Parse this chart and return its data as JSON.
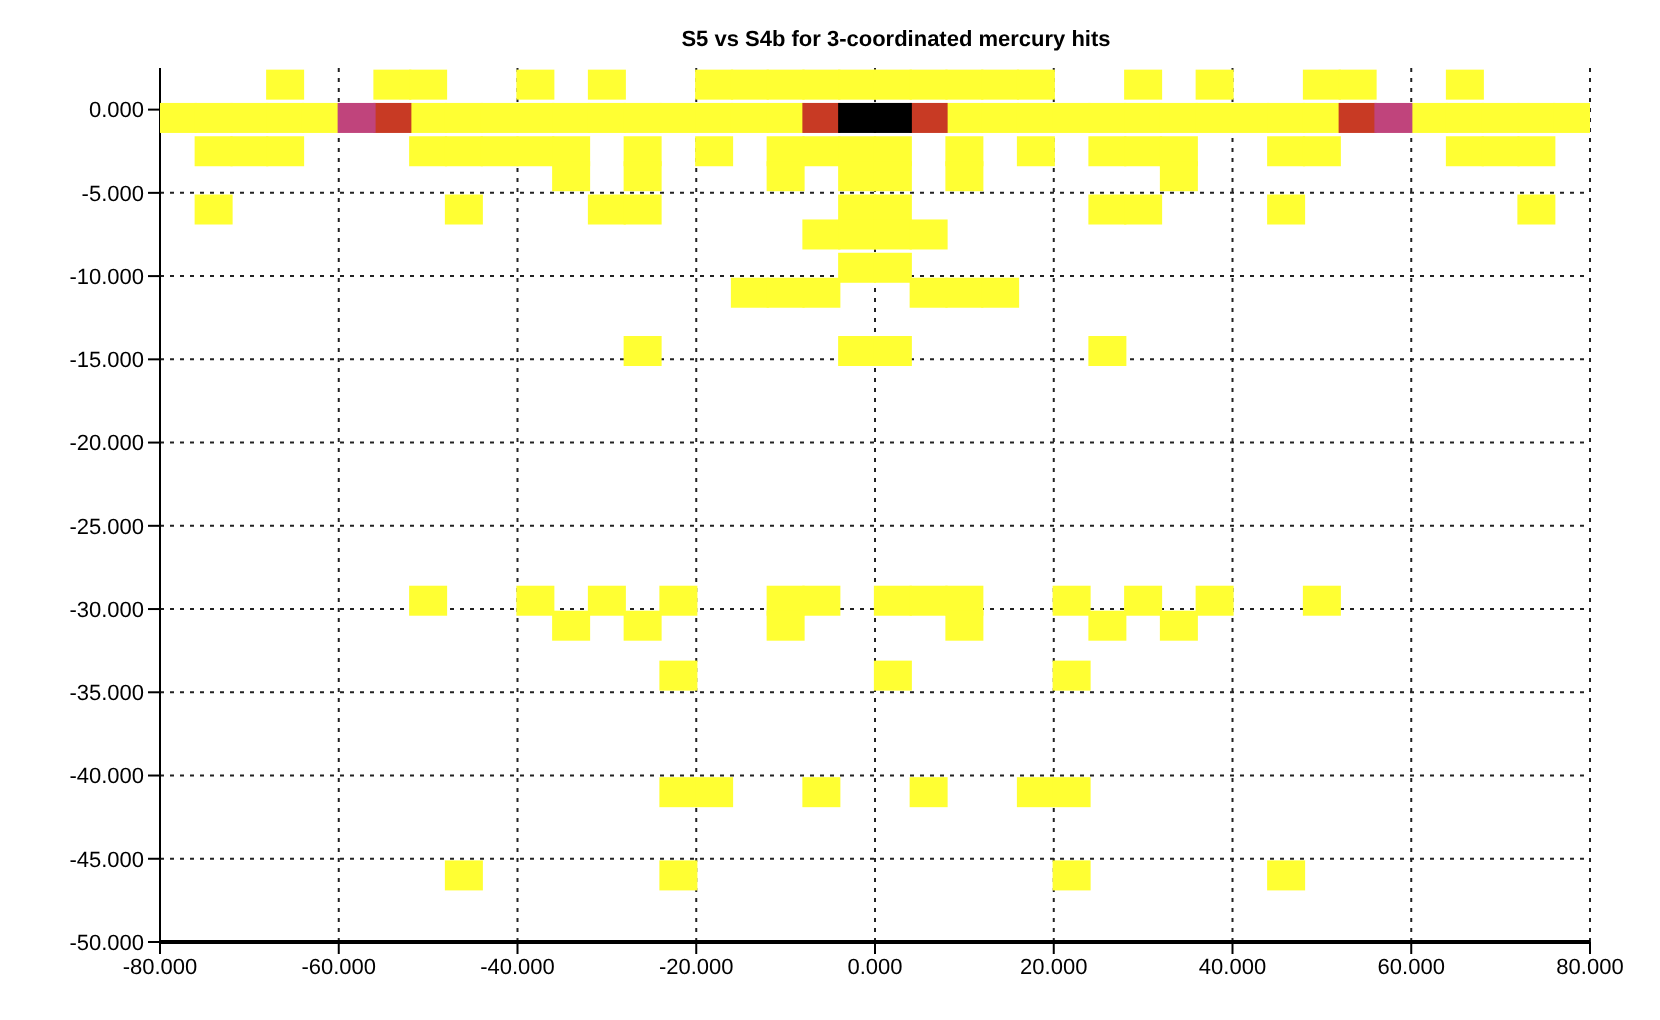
{
  "chart_data": {
    "type": "scatter",
    "title": "S5 vs S4b for 3-coordinated mercury hits",
    "marker": "square",
    "grid": true,
    "xlim": [
      -80,
      80
    ],
    "ylim": [
      -50,
      2.5
    ],
    "xticks": [
      {
        "value": -80,
        "label": "-80.000"
      },
      {
        "value": -60,
        "label": "-60.000"
      },
      {
        "value": -40,
        "label": "-40.000"
      },
      {
        "value": -20,
        "label": "-20.000"
      },
      {
        "value": 0,
        "label": "0.000"
      },
      {
        "value": 20,
        "label": "20.000"
      },
      {
        "value": 40,
        "label": "40.000"
      },
      {
        "value": 60,
        "label": "60.000"
      },
      {
        "value": 80,
        "label": "80.000"
      }
    ],
    "yticks": [
      {
        "value": 0,
        "label": "0.000"
      },
      {
        "value": -5,
        "label": "-5.000"
      },
      {
        "value": -10,
        "label": "-10.000"
      },
      {
        "value": -15,
        "label": "-15.000"
      },
      {
        "value": -20,
        "label": "-20.000"
      },
      {
        "value": -25,
        "label": "-25.000"
      },
      {
        "value": -30,
        "label": "-30.000"
      },
      {
        "value": -35,
        "label": "-35.000"
      },
      {
        "value": -40,
        "label": "-40.000"
      },
      {
        "value": -45,
        "label": "-45.000"
      },
      {
        "value": -50,
        "label": "-50.000"
      }
    ],
    "series": [
      {
        "color": "#ffff33",
        "x": [
          -66,
          -54,
          -50,
          -38,
          -30,
          -18,
          -14,
          -10,
          -6,
          -2,
          2,
          6,
          10,
          14,
          18,
          30,
          38,
          50,
          54,
          66,
          -78,
          -74,
          -70,
          -66,
          -62,
          -50,
          -46,
          -42,
          -38,
          -34,
          -30,
          -26,
          -22,
          -18,
          -14,
          -10,
          10,
          14,
          18,
          22,
          26,
          30,
          34,
          38,
          42,
          46,
          50,
          62,
          66,
          70,
          74,
          78,
          -74,
          -70,
          -66,
          -50,
          -46,
          -42,
          -38,
          -34,
          -26,
          -18,
          -10,
          -6,
          -2,
          2,
          10,
          18,
          26,
          30,
          34,
          46,
          50,
          66,
          70,
          74,
          -34,
          -26,
          -10,
          -2,
          2,
          10,
          34,
          -74,
          -46,
          -30,
          -26,
          -2,
          2,
          26,
          30,
          46,
          74,
          -6,
          -2,
          2,
          6,
          -2,
          2,
          -14,
          -10,
          -6,
          6,
          10,
          14,
          -26,
          -2,
          2,
          26,
          -50,
          -38,
          -30,
          -22,
          -10,
          -6,
          2,
          6,
          10,
          22,
          30,
          38,
          50,
          -34,
          -26,
          -10,
          10,
          26,
          34,
          -22,
          2,
          22,
          -22,
          -18,
          -6,
          6,
          18,
          22,
          -46,
          -22,
          22,
          46
        ],
        "values": [
          1.5,
          1.5,
          1.5,
          1.5,
          1.5,
          1.5,
          1.5,
          1.5,
          1.5,
          1.5,
          1.5,
          1.5,
          1.5,
          1.5,
          1.5,
          1.5,
          1.5,
          1.5,
          1.5,
          1.5,
          -0.5,
          -0.5,
          -0.5,
          -0.5,
          -0.5,
          -0.5,
          -0.5,
          -0.5,
          -0.5,
          -0.5,
          -0.5,
          -0.5,
          -0.5,
          -0.5,
          -0.5,
          -0.5,
          -0.5,
          -0.5,
          -0.5,
          -0.5,
          -0.5,
          -0.5,
          -0.5,
          -0.5,
          -0.5,
          -0.5,
          -0.5,
          -0.5,
          -0.5,
          -0.5,
          -0.5,
          -0.5,
          -2.5,
          -2.5,
          -2.5,
          -2.5,
          -2.5,
          -2.5,
          -2.5,
          -2.5,
          -2.5,
          -2.5,
          -2.5,
          -2.5,
          -2.5,
          -2.5,
          -2.5,
          -2.5,
          -2.5,
          -2.5,
          -2.5,
          -2.5,
          -2.5,
          -2.5,
          -2.5,
          -2.5,
          -4,
          -4,
          -4,
          -4,
          -4,
          -4,
          -4,
          -6,
          -6,
          -6,
          -6,
          -6,
          -6,
          -6,
          -6,
          -6,
          -6,
          -7.5,
          -7.5,
          -7.5,
          -7.5,
          -9.5,
          -9.5,
          -11,
          -11,
          -11,
          -11,
          -11,
          -11,
          -14.5,
          -14.5,
          -14.5,
          -14.5,
          -29.5,
          -29.5,
          -29.5,
          -29.5,
          -29.5,
          -29.5,
          -29.5,
          -29.5,
          -29.5,
          -29.5,
          -29.5,
          -29.5,
          -29.5,
          -31,
          -31,
          -31,
          -31,
          -31,
          -31,
          -34,
          -34,
          -34,
          -41,
          -41,
          -41,
          -41,
          -41,
          -41,
          -46,
          -46,
          -46,
          -46
        ]
      },
      {
        "color": "#c83a24",
        "x": [
          -54,
          -6,
          6,
          54
        ],
        "values": [
          -0.5,
          -0.5,
          -0.5,
          -0.5
        ]
      },
      {
        "color": "#c0447c",
        "x": [
          -58,
          58
        ],
        "values": [
          -0.5,
          -0.5
        ]
      },
      {
        "color": "#000000",
        "x": [
          -2,
          2
        ],
        "values": [
          -0.5,
          -0.5
        ]
      }
    ]
  }
}
